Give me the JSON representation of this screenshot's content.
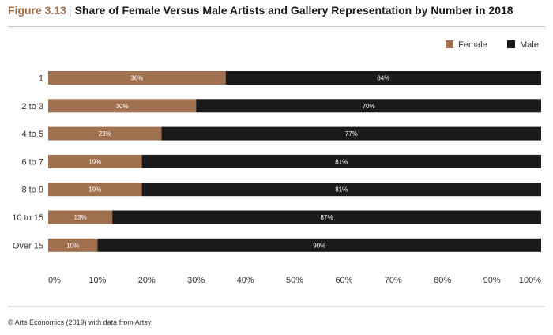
{
  "figure": {
    "number": "Figure 3.13",
    "title": "Share of Female Versus Male Artists and Gallery Representation by Number in 2018"
  },
  "source": "© Arts Economics (2019) with data from Artsy",
  "colors": {
    "female": "#a0704f",
    "male": "#1a1a1a",
    "axis": "#333333"
  },
  "chart_data": {
    "type": "bar",
    "orientation": "horizontal",
    "stacked": true,
    "categories": [
      "1",
      "2 to 3",
      "4 to 5",
      "6 to 7",
      "8 to 9",
      "10 to 15",
      "Over 15"
    ],
    "series": [
      {
        "name": "Female",
        "values": [
          36,
          30,
          23,
          19,
          19,
          13,
          10
        ],
        "labels": [
          "36%",
          "30%",
          "23%",
          "19%",
          "19%",
          "13%",
          "10%"
        ],
        "color": "#a0704f"
      },
      {
        "name": "Male",
        "values": [
          64,
          70,
          77,
          81,
          81,
          87,
          90
        ],
        "labels": [
          "64%",
          "70%",
          "77%",
          "81%",
          "81%",
          "87%",
          "90%"
        ],
        "color": "#1a1a1a"
      }
    ],
    "xlim": [
      0,
      100
    ],
    "xticks": [
      "0%",
      "10%",
      "20%",
      "30%",
      "40%",
      "50%",
      "60%",
      "70%",
      "80%",
      "90%",
      "100%"
    ],
    "legend_position": "top-right",
    "grid": false
  }
}
